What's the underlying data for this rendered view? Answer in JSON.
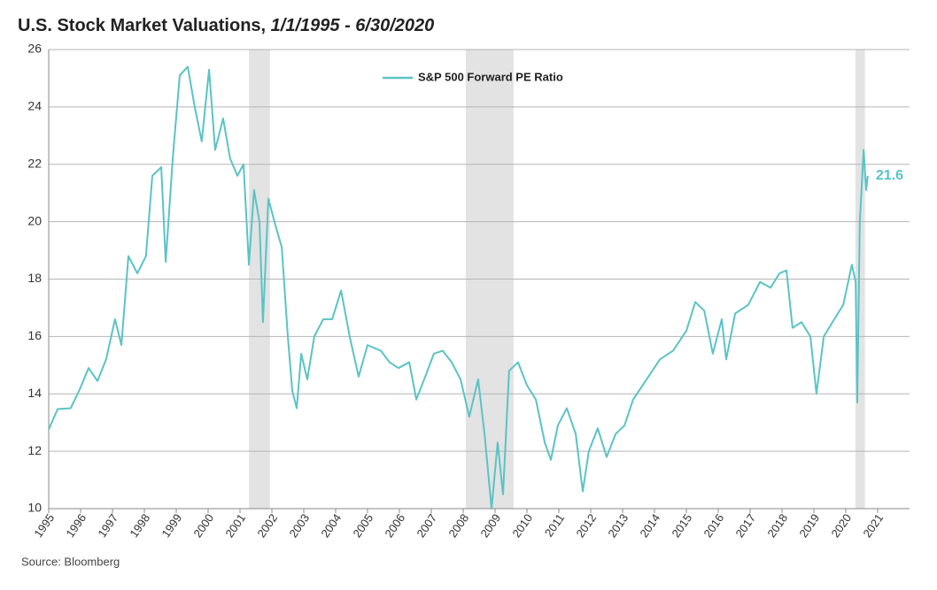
{
  "chart_data": {
    "type": "line",
    "title": "U.S. Stock Market Valuations,",
    "title_dates": "1/1/1995 - 6/30/2020",
    "source": "Source: Bloomberg",
    "x": [
      1995.0,
      1995.28,
      1995.69,
      1995.97,
      1996.25,
      1996.53,
      1996.8,
      1997.08,
      1997.28,
      1997.5,
      1997.78,
      1998.05,
      1998.25,
      1998.53,
      1998.67,
      1998.89,
      1999.11,
      1999.36,
      1999.58,
      1999.8,
      2000.03,
      2000.22,
      2000.47,
      2000.69,
      2000.92,
      2001.11,
      2001.28,
      2001.44,
      2001.61,
      2001.72,
      2001.89,
      2002.08,
      2002.31,
      2002.5,
      2002.64,
      2002.78,
      2002.92,
      2003.11,
      2003.33,
      2003.61,
      2003.89,
      2004.17,
      2004.44,
      2004.72,
      2005.0,
      2005.42,
      2005.69,
      2005.97,
      2006.31,
      2006.53,
      2006.81,
      2007.08,
      2007.36,
      2007.64,
      2007.92,
      2008.19,
      2008.47,
      2008.67,
      2008.89,
      2009.08,
      2009.25,
      2009.44,
      2009.72,
      2010.0,
      2010.28,
      2010.56,
      2010.75,
      2010.97,
      2011.25,
      2011.53,
      2011.75,
      2011.94,
      2012.22,
      2012.5,
      2012.78,
      2013.06,
      2013.33,
      2013.75,
      2014.17,
      2014.58,
      2015.0,
      2015.28,
      2015.56,
      2015.83,
      2016.11,
      2016.25,
      2016.53,
      2016.94,
      2017.31,
      2017.64,
      2017.92,
      2018.14,
      2018.33,
      2018.61,
      2018.89,
      2019.08,
      2019.31,
      2019.64,
      2019.92,
      2020.19,
      2020.31,
      2020.36,
      2020.44,
      2020.56,
      2020.64,
      2020.69
    ],
    "series": [
      {
        "name": "S&P 500 Forward PE Ratio",
        "color": "#5bc3c5",
        "values": [
          12.76,
          13.47,
          13.5,
          14.15,
          14.9,
          14.45,
          15.2,
          16.6,
          15.7,
          18.8,
          18.2,
          18.8,
          21.6,
          21.9,
          18.6,
          22.2,
          25.1,
          25.4,
          24.0,
          22.8,
          25.3,
          22.5,
          23.6,
          22.2,
          21.6,
          22.0,
          18.5,
          21.1,
          20.0,
          16.5,
          20.8,
          20.0,
          19.1,
          16.0,
          14.1,
          13.5,
          15.4,
          14.5,
          16.0,
          16.6,
          16.6,
          17.6,
          16.0,
          14.6,
          15.7,
          15.5,
          15.1,
          14.9,
          15.1,
          13.8,
          14.6,
          15.4,
          15.5,
          15.1,
          14.5,
          13.2,
          14.5,
          12.6,
          10.0,
          12.3,
          10.5,
          14.8,
          15.1,
          14.3,
          13.8,
          12.3,
          11.7,
          12.9,
          13.5,
          12.6,
          10.6,
          12.0,
          12.8,
          11.8,
          12.6,
          12.9,
          13.8,
          14.5,
          15.2,
          15.5,
          16.2,
          17.2,
          16.9,
          15.4,
          16.6,
          15.2,
          16.8,
          17.1,
          17.9,
          17.7,
          18.2,
          18.3,
          16.3,
          16.5,
          16.0,
          14.0,
          16.0,
          16.6,
          17.1,
          18.5,
          17.9,
          13.7,
          20.0,
          22.5,
          21.1,
          21.6
        ]
      }
    ],
    "shaded_periods": [
      [
        2001.28,
        2001.94
      ],
      [
        2008.08,
        2009.58
      ],
      [
        2020.3,
        2020.6
      ]
    ],
    "shade_color": "#e3e3e3",
    "xlim": [
      1995,
      2022
    ],
    "xticks": [
      1995,
      1996,
      1997,
      1998,
      1999,
      2000,
      2001,
      2002,
      2003,
      2004,
      2005,
      2006,
      2007,
      2008,
      2009,
      2010,
      2011,
      2012,
      2013,
      2014,
      2015,
      2016,
      2017,
      2018,
      2019,
      2020,
      2021
    ],
    "ylim": [
      10,
      26
    ],
    "yticks": [
      10,
      12,
      14,
      16,
      18,
      20,
      22,
      24,
      26
    ],
    "grid": true,
    "legend": "top"
  }
}
